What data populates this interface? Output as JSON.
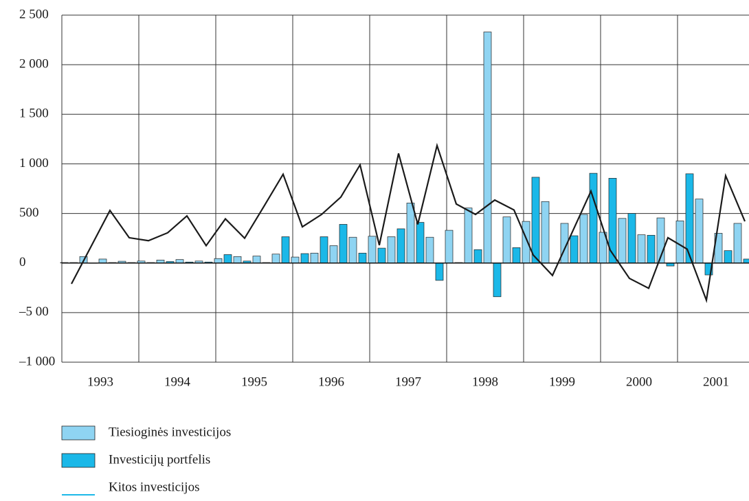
{
  "chart_data": {
    "type": "bar",
    "groups": [
      "1993",
      "1994",
      "1995",
      "1996",
      "1997",
      "1998",
      "1999",
      "2000",
      "2001"
    ],
    "periods_per_group": 4,
    "series": [
      {
        "name": "Tiesioginės investicijos",
        "type": "bar",
        "color": "#8fd4f2",
        "values": [
          5,
          65,
          40,
          18,
          20,
          30,
          35,
          20,
          45,
          65,
          70,
          90,
          60,
          100,
          175,
          260,
          270,
          265,
          605,
          260,
          330,
          555,
          2330,
          465,
          420,
          620,
          400,
          490,
          310,
          450,
          285,
          455,
          425,
          645,
          300,
          400
        ]
      },
      {
        "name": "Investicijų portfelis",
        "type": "bar",
        "color": "#1bb8e8",
        "values": [
          5,
          0,
          5,
          5,
          5,
          15,
          10,
          10,
          85,
          20,
          5,
          265,
          95,
          265,
          390,
          100,
          150,
          345,
          410,
          -175,
          5,
          135,
          -340,
          155,
          865,
          0,
          275,
          905,
          855,
          500,
          280,
          -30,
          900,
          -120,
          125,
          40
        ]
      },
      {
        "name": "Kitos investicijos",
        "type": "line",
        "color": "#1a1a1a",
        "legend_color": "#1bb8e8",
        "values": [
          -210,
          160,
          530,
          255,
          225,
          305,
          475,
          175,
          445,
          250,
          570,
          895,
          365,
          490,
          665,
          990,
          180,
          1105,
          390,
          1185,
          595,
          490,
          635,
          535,
          80,
          -125,
          300,
          725,
          130,
          -155,
          -255,
          255,
          140,
          -375,
          880,
          420
        ]
      }
    ],
    "ylim": [
      -1000,
      2500
    ],
    "yticks": [
      {
        "value": 2500,
        "label": "2 500"
      },
      {
        "value": 2000,
        "label": "2 000"
      },
      {
        "value": 1500,
        "label": "1 500"
      },
      {
        "value": 1000,
        "label": "1 000"
      },
      500,
      0,
      {
        "value": -500,
        "label": "–5 00"
      },
      {
        "value": -1000,
        "label": "–1 000"
      }
    ],
    "grid": true
  }
}
